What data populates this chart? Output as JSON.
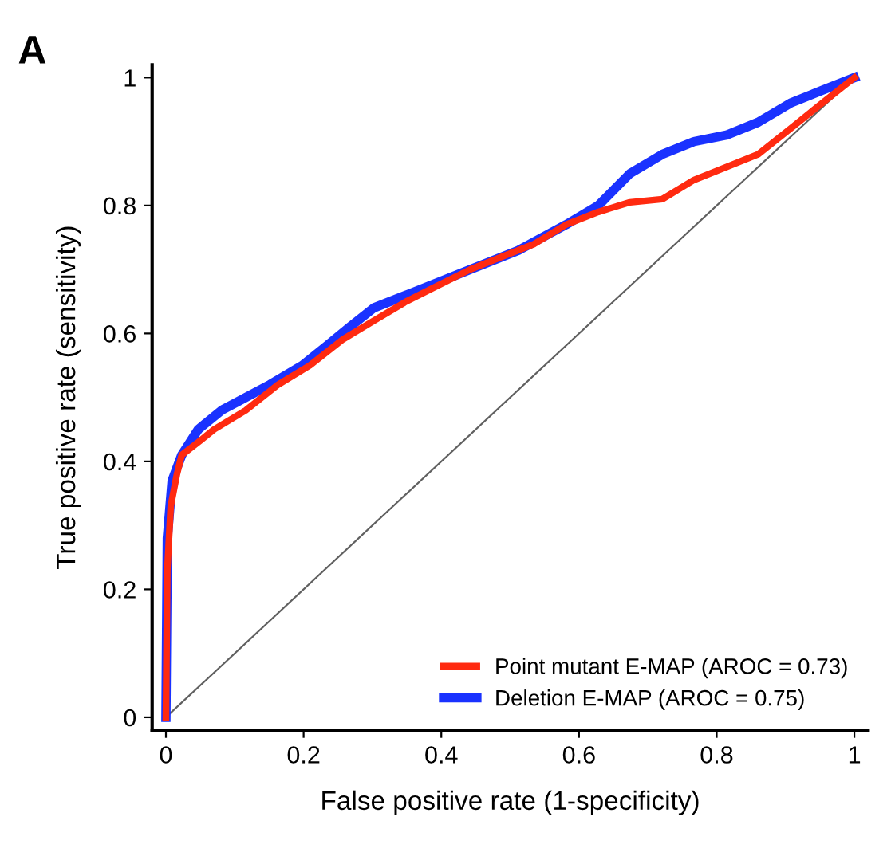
{
  "chart_data": {
    "type": "line",
    "title": "A",
    "xlabel": "False positive rate (1-specificity)",
    "ylabel": "True positive rate (sensitivity)",
    "xlim": [
      -0.02,
      1.02
    ],
    "ylim": [
      -0.02,
      1.02
    ],
    "xticks": [
      0,
      0.2,
      0.4,
      0.6,
      0.8,
      1
    ],
    "yticks": [
      0,
      0.2,
      0.4,
      0.6,
      0.8,
      1
    ],
    "grid": false,
    "legend": "bottom right",
    "marker": "none",
    "line_style": "solid",
    "series": [
      {
        "name": "Point mutant E-MAP (AROC = 0.73)",
        "color": "#ff2a10",
        "x": [
          0,
          0.002,
          0.007,
          0.016,
          0.023,
          0.047,
          0.07,
          0.116,
          0.163,
          0.209,
          0.256,
          0.302,
          0.349,
          0.395,
          0.442,
          0.488,
          0.535,
          0.581,
          0.628,
          0.674,
          0.721,
          0.767,
          0.814,
          0.86,
          0.907,
          0.953,
          1
        ],
        "values": [
          0,
          0.23,
          0.33,
          0.38,
          0.41,
          0.43,
          0.45,
          0.48,
          0.52,
          0.55,
          0.59,
          0.62,
          0.65,
          0.675,
          0.7,
          0.72,
          0.74,
          0.77,
          0.79,
          0.805,
          0.81,
          0.84,
          0.86,
          0.88,
          0.92,
          0.96,
          1
        ]
      },
      {
        "name": "Deletion E-MAP (AROC = 0.75)",
        "color": "#1a32ff",
        "x": [
          0,
          0.002,
          0.009,
          0.023,
          0.047,
          0.081,
          0.116,
          0.151,
          0.198,
          0.233,
          0.267,
          0.302,
          0.349,
          0.442,
          0.512,
          0.581,
          0.628,
          0.674,
          0.721,
          0.767,
          0.814,
          0.86,
          0.907,
          0.953,
          1
        ],
        "values": [
          0,
          0.28,
          0.37,
          0.41,
          0.45,
          0.48,
          0.5,
          0.52,
          0.55,
          0.58,
          0.61,
          0.64,
          0.66,
          0.7,
          0.73,
          0.77,
          0.8,
          0.85,
          0.88,
          0.9,
          0.91,
          0.93,
          0.96,
          0.98,
          1
        ]
      },
      {
        "type": "line",
        "color": "#606060",
        "x": [
          0,
          1
        ],
        "values": [
          0,
          1
        ]
      }
    ]
  }
}
